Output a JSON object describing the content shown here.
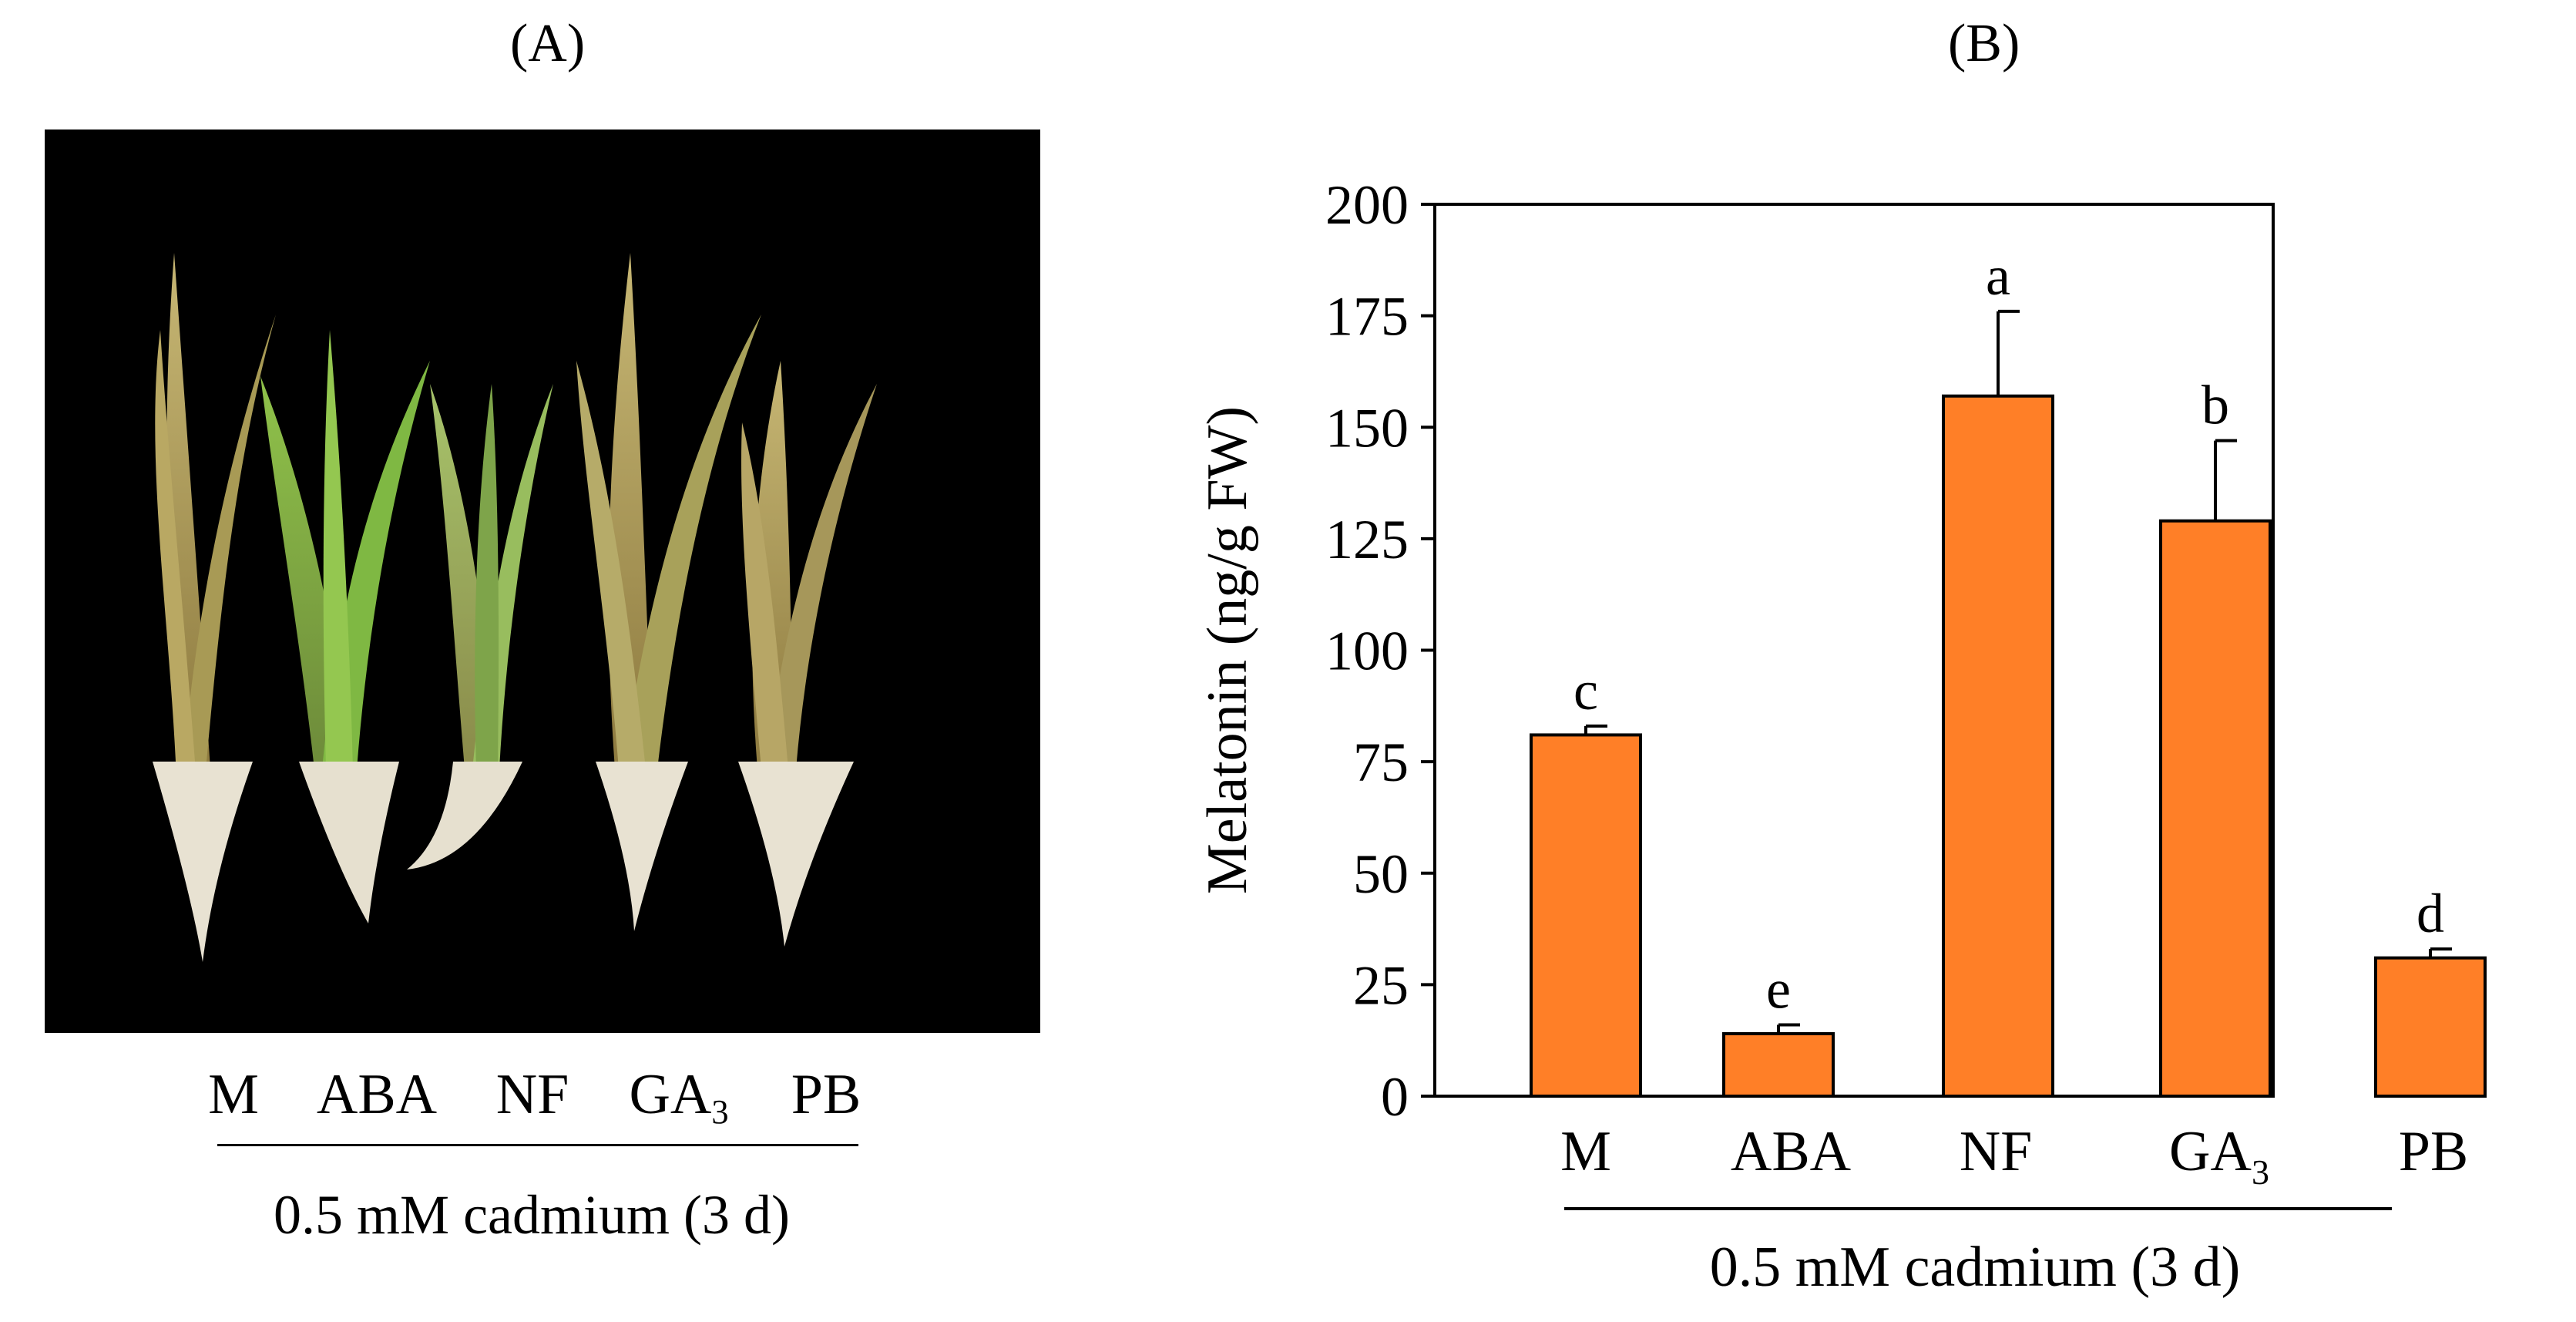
{
  "panels": {
    "a_label": "(A)",
    "b_label": "(B)"
  },
  "photo": {
    "treatments": [
      "M",
      "ABA",
      "NF",
      "GA",
      "PB"
    ],
    "ga_subscript": "3",
    "caption": "0.5 mM cadmium (3 d)"
  },
  "chart_data": {
    "type": "bar",
    "title": "",
    "categories": [
      "M",
      "ABA",
      "NF",
      "GA3",
      "PB"
    ],
    "category_labels": [
      {
        "main": "M",
        "sub": ""
      },
      {
        "main": "ABA",
        "sub": ""
      },
      {
        "main": "NF",
        "sub": ""
      },
      {
        "main": "GA",
        "sub": "3"
      },
      {
        "main": "PB",
        "sub": ""
      }
    ],
    "values": [
      81,
      14,
      157,
      129,
      31
    ],
    "errors": [
      2,
      2,
      19,
      18,
      2
    ],
    "significance_letters": [
      "c",
      "e",
      "a",
      "b",
      "d"
    ],
    "xlabel": "0.5 mM cadmium (3 d)",
    "ylabel": "Melatonin (ng/g FW)",
    "ylim": [
      0,
      200
    ],
    "yticks": [
      0,
      25,
      50,
      75,
      100,
      125,
      150,
      175,
      200
    ],
    "bar_color": "#FF7F27",
    "grid": false
  }
}
